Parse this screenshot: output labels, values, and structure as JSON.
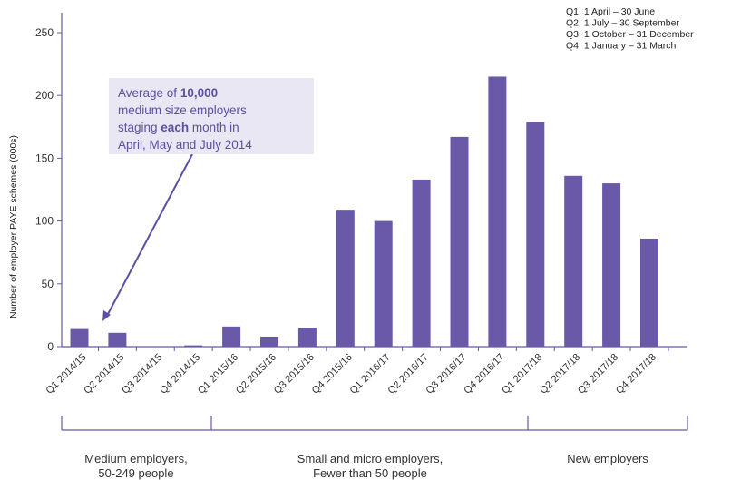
{
  "chart_data": {
    "type": "bar",
    "ylabel": "Number of employer PAYE schemes (000s)",
    "ylim": [
      0,
      250
    ],
    "yticks": [
      0,
      50,
      100,
      150,
      200,
      250
    ],
    "categories": [
      "Q1 2014/15",
      "Q2 2014/15",
      "Q3 2014/15",
      "Q4 2014/15",
      "Q1 2015/16",
      "Q2 2015/16",
      "Q3 2015/16",
      "Q4 2015/16",
      "Q1 2016/17",
      "Q2 2016/17",
      "Q3 2016/17",
      "Q4 2016/17",
      "Q1 2017/18",
      "Q2 2017/18",
      "Q3 2017/18",
      "Q4 2017/18"
    ],
    "values": [
      14,
      11,
      0,
      1,
      16,
      8,
      15,
      109,
      100,
      133,
      167,
      215,
      179,
      136,
      130,
      86
    ],
    "bar_color": "#6a58a8",
    "legend": [
      "Q1: 1 April – 30 June",
      "Q2: 1 July – 30 September",
      "Q3: 1 October – 31 December",
      "Q4: 1 January – 31 March"
    ],
    "groups": [
      {
        "line1": "Medium employers,",
        "line2": "50-249 people",
        "start": 0,
        "end": 3
      },
      {
        "line1": "Small and micro employers,",
        "line2": "Fewer than 50 people",
        "start": 4,
        "end": 11
      },
      {
        "line1": "New employers",
        "line2": "",
        "start": 12,
        "end": 15
      }
    ],
    "annotation": {
      "part1": "Average of ",
      "bold1": "10,000",
      "line2": "medium size employers",
      "part3": "staging ",
      "bold3": "each",
      "part3b": " month in",
      "line4": "April, May and July 2014"
    }
  }
}
